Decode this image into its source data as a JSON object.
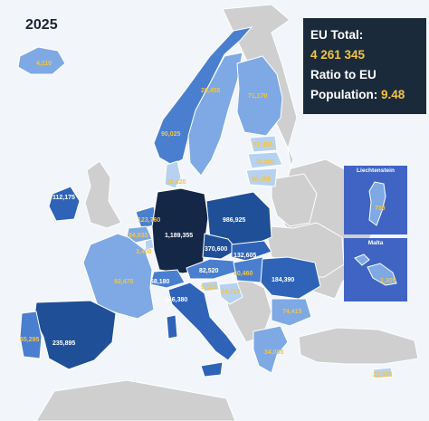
{
  "year": "2025",
  "summary": {
    "eu_total_label": "EU Total:",
    "eu_total_value": "4 261 345",
    "ratio_label": "Ratio to EU",
    "population_label": "Population:",
    "ratio_value": "9.48"
  },
  "insets": {
    "liechtenstein": {
      "title": "Liechtenstein",
      "value": "730"
    },
    "malta": {
      "title": "Malta",
      "value": "2,305"
    }
  },
  "colors": {
    "darkest": "#142746",
    "dark": "#1f4f97",
    "medium_dark": "#2f63b8",
    "medium": "#4a7fd0",
    "light": "#7ea9e4",
    "lightest": "#b7d2f0",
    "no_data": "#cfcfcf",
    "label": "#f4c542"
  },
  "labels": {
    "iceland": "4,110",
    "norway": "90,025",
    "sweden": "26,455",
    "finland": "71,170",
    "estonia": "33,450",
    "latvia": "32,800",
    "lithuania": "60,455",
    "denmark": "38,820",
    "ireland": "112,175",
    "netherlands": "123,760",
    "belgium": "84,535",
    "luxembourg": "3,400",
    "germany": "1,189,355",
    "poland": "986,925",
    "czechia": "370,600",
    "slovakia": "132,605",
    "austria": "82,520",
    "hungary": "40,460",
    "switzerland": "68,180",
    "slovenia": "9,115",
    "croatia": "24,715",
    "france": "92,475",
    "italy": "166,380",
    "romania": "184,390",
    "bulgaria": "74,415",
    "greece": "34,085",
    "spain": "235,895",
    "portugal": "65,295",
    "cyprus": "21,325"
  }
}
